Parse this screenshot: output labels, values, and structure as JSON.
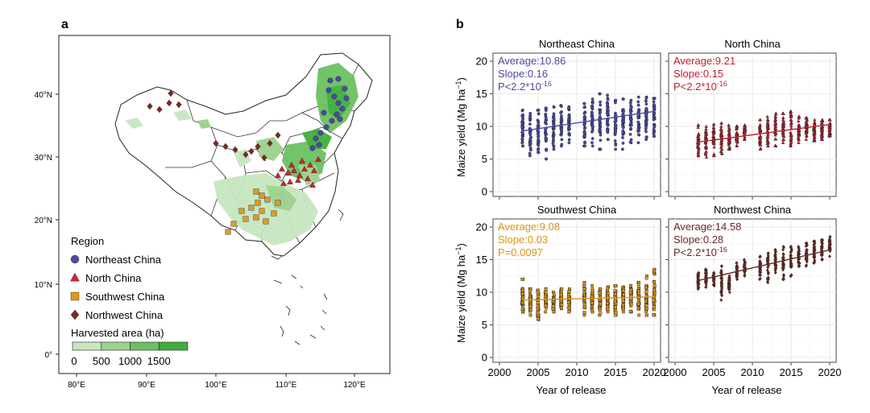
{
  "panel_a": {
    "label": "a",
    "lat_labels": [
      "40°N",
      "30°N",
      "20°N",
      "10°N",
      "0°"
    ],
    "lon_labels": [
      "80°E",
      "90°E",
      "100°E",
      "110°E",
      "120°E"
    ],
    "legend": {
      "region_title": "Region",
      "regions": [
        {
          "name": "Northeast China",
          "shape": "circle",
          "color": "#4b4aa3"
        },
        {
          "name": "North China",
          "shape": "triangle",
          "color": "#d2222f"
        },
        {
          "name": "Southwest China",
          "shape": "square",
          "color": "#e09a1c"
        },
        {
          "name": "Northwest China",
          "shape": "diamond",
          "color": "#7b2a1e"
        }
      ],
      "harvest_title": "Harvested area (ha)",
      "harvest_ticks": [
        "0",
        "500",
        "1000",
        "1500"
      ],
      "harvest_colors": [
        "#c8e6c0",
        "#9bd28f",
        "#6cc061",
        "#3fae3a"
      ]
    }
  },
  "panel_b": {
    "label": "b",
    "ylabel": "Maize yield (Mg ha",
    "ylabel_sup": "−1",
    "ylabel_close": ")",
    "xlabel": "Year of release"
  },
  "chart_data": [
    {
      "type": "scatter",
      "title": "Northeast China",
      "color": "#4b4aa3",
      "marker": "circle",
      "xlim": [
        2000,
        2020
      ],
      "ylim": [
        0,
        22
      ],
      "xticks": [
        2000,
        2005,
        2010,
        2015,
        2020
      ],
      "yticks": [
        0,
        5,
        10,
        15,
        20
      ],
      "stats": {
        "average": "Average:10.86",
        "slope": "Slope:0.16",
        "p": "P<2.2*10",
        "p_exp": "-16"
      },
      "fit": {
        "x": [
          2003,
          2020
        ],
        "y": [
          9.3,
          12.3
        ]
      },
      "groups": [
        {
          "year": 2003,
          "mean": 9.5,
          "lo": 7.0,
          "hi": 12.5
        },
        {
          "year": 2004,
          "mean": 9.6,
          "lo": 5.5,
          "hi": 12.0
        },
        {
          "year": 2005,
          "mean": 9.8,
          "lo": 6.0,
          "hi": 12.5
        },
        {
          "year": 2006,
          "mean": 9.7,
          "lo": 5.0,
          "hi": 12.8
        },
        {
          "year": 2007,
          "mean": 10.2,
          "lo": 6.5,
          "hi": 13.0
        },
        {
          "year": 2008,
          "mean": 10.3,
          "lo": 7.0,
          "hi": 13.2
        },
        {
          "year": 2009,
          "mean": 10.4,
          "lo": 7.5,
          "hi": 13.0
        },
        {
          "year": 2011,
          "mean": 10.9,
          "lo": 7.0,
          "hi": 13.5
        },
        {
          "year": 2012,
          "mean": 11.3,
          "lo": 7.0,
          "hi": 14.2
        },
        {
          "year": 2013,
          "mean": 11.5,
          "lo": 6.5,
          "hi": 15.0
        },
        {
          "year": 2014,
          "mean": 11.8,
          "lo": 8.0,
          "hi": 14.8
        },
        {
          "year": 2015,
          "mean": 11.2,
          "lo": 6.5,
          "hi": 14.0
        },
        {
          "year": 2016,
          "mean": 11.7,
          "lo": 6.5,
          "hi": 14.2
        },
        {
          "year": 2017,
          "mean": 11.5,
          "lo": 7.5,
          "hi": 14.0
        },
        {
          "year": 2018,
          "mean": 11.7,
          "lo": 7.5,
          "hi": 14.5
        },
        {
          "year": 2019,
          "mean": 11.9,
          "lo": 8.0,
          "hi": 14.5
        },
        {
          "year": 2020,
          "mean": 12.0,
          "lo": 8.5,
          "hi": 14.3
        }
      ]
    },
    {
      "type": "scatter",
      "title": "North China",
      "color": "#c41e2e",
      "marker": "triangle",
      "xlim": [
        2000,
        2020
      ],
      "ylim": [
        0,
        22
      ],
      "xticks": [
        2000,
        2005,
        2010,
        2015,
        2020
      ],
      "yticks": [
        0,
        5,
        10,
        15,
        20
      ],
      "stats": {
        "average": "Average:9.21",
        "slope": "Slope:0.15",
        "p": "P<2.2*10",
        "p_exp": "-16"
      },
      "fit": {
        "x": [
          2003,
          2020
        ],
        "y": [
          7.6,
          10.3
        ]
      },
      "groups": [
        {
          "year": 2003,
          "mean": 7.8,
          "lo": 5.5,
          "hi": 10.2
        },
        {
          "year": 2004,
          "mean": 7.9,
          "lo": 5.3,
          "hi": 10.0
        },
        {
          "year": 2005,
          "mean": 8.0,
          "lo": 5.5,
          "hi": 10.3
        },
        {
          "year": 2006,
          "mean": 8.2,
          "lo": 5.8,
          "hi": 10.5
        },
        {
          "year": 2007,
          "mean": 8.6,
          "lo": 6.5,
          "hi": 10.2
        },
        {
          "year": 2008,
          "mean": 9.0,
          "lo": 7.0,
          "hi": 10.0
        },
        {
          "year": 2009,
          "mean": 9.2,
          "lo": 8.0,
          "hi": 10.2
        },
        {
          "year": 2011,
          "mean": 9.5,
          "lo": 6.5,
          "hi": 11.0
        },
        {
          "year": 2012,
          "mean": 9.7,
          "lo": 7.0,
          "hi": 11.5
        },
        {
          "year": 2013,
          "mean": 10.0,
          "lo": 7.0,
          "hi": 12.0
        },
        {
          "year": 2014,
          "mean": 10.2,
          "lo": 7.5,
          "hi": 12.0
        },
        {
          "year": 2015,
          "mean": 10.4,
          "lo": 7.0,
          "hi": 12.3
        },
        {
          "year": 2016,
          "mean": 10.0,
          "lo": 7.5,
          "hi": 11.5
        },
        {
          "year": 2017,
          "mean": 10.1,
          "lo": 8.0,
          "hi": 11.3
        },
        {
          "year": 2018,
          "mean": 10.2,
          "lo": 7.8,
          "hi": 11.0
        },
        {
          "year": 2019,
          "mean": 10.3,
          "lo": 8.0,
          "hi": 11.0
        },
        {
          "year": 2020,
          "mean": 10.3,
          "lo": 8.5,
          "hi": 11.0
        }
      ]
    },
    {
      "type": "scatter",
      "title": "Southwest China",
      "color": "#d9961a",
      "marker": "square",
      "xlim": [
        2000,
        2020
      ],
      "ylim": [
        0,
        22
      ],
      "xticks": [
        2000,
        2005,
        2010,
        2015,
        2020
      ],
      "yticks": [
        0,
        5,
        10,
        15,
        20
      ],
      "stats": {
        "average": "Average:9.08",
        "slope": "Slope:0.03",
        "p": "P=0.0097",
        "p_exp": ""
      },
      "fit": {
        "x": [
          2003,
          2020
        ],
        "y": [
          8.8,
          9.3
        ]
      },
      "groups": [
        {
          "year": 2003,
          "mean": 9.0,
          "lo": 7.0,
          "hi": 12.0
        },
        {
          "year": 2004,
          "mean": 8.9,
          "lo": 6.5,
          "hi": 10.5
        },
        {
          "year": 2005,
          "mean": 8.8,
          "lo": 5.8,
          "hi": 10.3
        },
        {
          "year": 2006,
          "mean": 9.0,
          "lo": 7.0,
          "hi": 10.5
        },
        {
          "year": 2007,
          "mean": 8.9,
          "lo": 7.0,
          "hi": 10.0
        },
        {
          "year": 2008,
          "mean": 9.0,
          "lo": 7.5,
          "hi": 10.5
        },
        {
          "year": 2009,
          "mean": 9.0,
          "lo": 7.0,
          "hi": 10.5
        },
        {
          "year": 2011,
          "mean": 9.1,
          "lo": 6.5,
          "hi": 11.5
        },
        {
          "year": 2012,
          "mean": 9.0,
          "lo": 7.0,
          "hi": 11.0
        },
        {
          "year": 2013,
          "mean": 9.1,
          "lo": 6.5,
          "hi": 10.5
        },
        {
          "year": 2014,
          "mean": 9.2,
          "lo": 7.0,
          "hi": 10.8
        },
        {
          "year": 2015,
          "mean": 9.0,
          "lo": 6.5,
          "hi": 11.0
        },
        {
          "year": 2016,
          "mean": 9.1,
          "lo": 7.0,
          "hi": 10.8
        },
        {
          "year": 2017,
          "mean": 9.0,
          "lo": 7.0,
          "hi": 11.0
        },
        {
          "year": 2018,
          "mean": 9.2,
          "lo": 6.5,
          "hi": 11.5
        },
        {
          "year": 2019,
          "mean": 9.3,
          "lo": 6.5,
          "hi": 12.5
        },
        {
          "year": 2020,
          "mean": 9.4,
          "lo": 6.5,
          "hi": 13.5
        }
      ]
    },
    {
      "type": "scatter",
      "title": "Northwest China",
      "color": "#6e2a22",
      "marker": "diamond",
      "xlim": [
        2000,
        2020
      ],
      "ylim": [
        0,
        22
      ],
      "xticks": [
        2000,
        2005,
        2010,
        2015,
        2020
      ],
      "yticks": [
        0,
        5,
        10,
        15,
        20
      ],
      "stats": {
        "average": "Average:14.58",
        "slope": "Slope:0.28",
        "p": "P<2.2*10",
        "p_exp": "-16"
      },
      "fit": {
        "x": [
          2003,
          2020
        ],
        "y": [
          11.8,
          16.5
        ]
      },
      "groups": [
        {
          "year": 2003,
          "mean": 11.8,
          "lo": 10.5,
          "hi": 13.0
        },
        {
          "year": 2004,
          "mean": 12.0,
          "lo": 10.8,
          "hi": 13.5
        },
        {
          "year": 2005,
          "mean": 12.2,
          "lo": 11.0,
          "hi": 13.0
        },
        {
          "year": 2006,
          "mean": 12.5,
          "lo": 8.8,
          "hi": 14.0
        },
        {
          "year": 2007,
          "mean": 11.5,
          "lo": 10.0,
          "hi": 12.5
        },
        {
          "year": 2008,
          "mean": 13.0,
          "lo": 12.0,
          "hi": 14.5
        },
        {
          "year": 2009,
          "mean": 13.5,
          "lo": 12.5,
          "hi": 15.0
        },
        {
          "year": 2011,
          "mean": 14.0,
          "lo": 12.0,
          "hi": 15.5
        },
        {
          "year": 2012,
          "mean": 14.5,
          "lo": 11.5,
          "hi": 16.0
        },
        {
          "year": 2013,
          "mean": 14.8,
          "lo": 13.0,
          "hi": 16.5
        },
        {
          "year": 2014,
          "mean": 14.8,
          "lo": 12.0,
          "hi": 17.0
        },
        {
          "year": 2015,
          "mean": 15.3,
          "lo": 12.5,
          "hi": 17.0
        },
        {
          "year": 2016,
          "mean": 15.3,
          "lo": 14.0,
          "hi": 17.0
        },
        {
          "year": 2017,
          "mean": 15.8,
          "lo": 14.0,
          "hi": 17.5
        },
        {
          "year": 2018,
          "mean": 16.0,
          "lo": 14.5,
          "hi": 17.8
        },
        {
          "year": 2019,
          "mean": 16.2,
          "lo": 15.0,
          "hi": 18.0
        },
        {
          "year": 2020,
          "mean": 16.5,
          "lo": 15.5,
          "hi": 18.5
        }
      ]
    }
  ]
}
